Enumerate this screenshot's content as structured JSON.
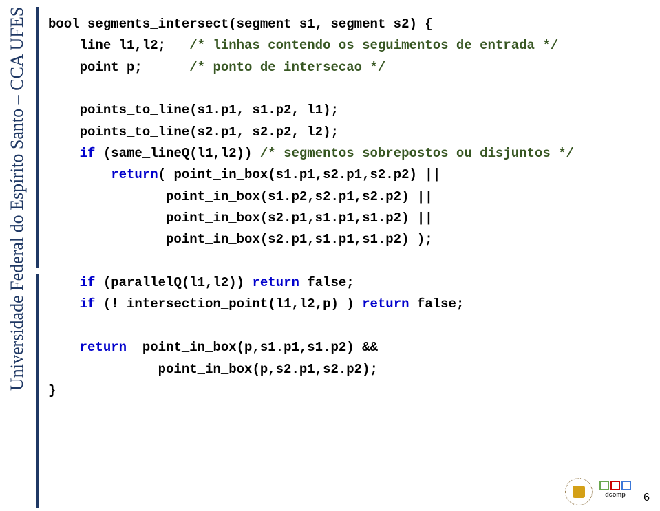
{
  "sidebar": {
    "text": "Universidade Federal do Espírito Santo – CCA UFES",
    "color": "#1f3864",
    "fontsize": 26
  },
  "code": {
    "lines": [
      {
        "indent": 0,
        "tokens": [
          {
            "t": "plain",
            "v": "bool segments_intersect(segment s1, segment s2) {"
          }
        ]
      },
      {
        "indent": 1,
        "tokens": [
          {
            "t": "plain",
            "v": "line l1,l2;   "
          },
          {
            "t": "comment",
            "v": "/* linhas contendo os seguimentos de entrada */"
          }
        ]
      },
      {
        "indent": 1,
        "tokens": [
          {
            "t": "plain",
            "v": "point p;      "
          },
          {
            "t": "comment",
            "v": "/* ponto de intersecao */"
          }
        ]
      },
      {
        "indent": 0,
        "tokens": [
          {
            "t": "plain",
            "v": ""
          }
        ]
      },
      {
        "indent": 1,
        "tokens": [
          {
            "t": "plain",
            "v": "points_to_line(s1.p1, s1.p2, l1);"
          }
        ]
      },
      {
        "indent": 1,
        "tokens": [
          {
            "t": "plain",
            "v": "points_to_line(s2.p1, s2.p2, l2);"
          }
        ]
      },
      {
        "indent": 1,
        "tokens": [
          {
            "t": "keyword",
            "v": "if"
          },
          {
            "t": "plain",
            "v": " (same_lineQ(l1,l2)) "
          },
          {
            "t": "comment",
            "v": "/* segmentos sobrepostos ou disjuntos */"
          }
        ]
      },
      {
        "indent": 2,
        "tokens": [
          {
            "t": "keyword",
            "v": "return"
          },
          {
            "t": "plain",
            "v": "( point_in_box(s1.p1,s2.p1,s2.p2) ||"
          }
        ]
      },
      {
        "indent": 3,
        "tokens": [
          {
            "t": "plain",
            "v": "   point_in_box(s1.p2,s2.p1,s2.p2) ||"
          }
        ]
      },
      {
        "indent": 3,
        "tokens": [
          {
            "t": "plain",
            "v": "   point_in_box(s2.p1,s1.p1,s1.p2) ||"
          }
        ]
      },
      {
        "indent": 3,
        "tokens": [
          {
            "t": "plain",
            "v": "   point_in_box(s2.p1,s1.p1,s1.p2) );"
          }
        ]
      },
      {
        "indent": 0,
        "tokens": [
          {
            "t": "plain",
            "v": ""
          }
        ]
      },
      {
        "indent": 1,
        "tokens": [
          {
            "t": "keyword",
            "v": "if"
          },
          {
            "t": "plain",
            "v": " (parallelQ(l1,l2)) "
          },
          {
            "t": "keyword",
            "v": "return"
          },
          {
            "t": "plain",
            "v": " false;"
          }
        ]
      },
      {
        "indent": 1,
        "tokens": [
          {
            "t": "keyword",
            "v": "if"
          },
          {
            "t": "plain",
            "v": " (! intersection_point(l1,l2,p) ) "
          },
          {
            "t": "keyword",
            "v": "return"
          },
          {
            "t": "plain",
            "v": " false;"
          }
        ]
      },
      {
        "indent": 0,
        "tokens": [
          {
            "t": "plain",
            "v": ""
          }
        ]
      },
      {
        "indent": 1,
        "tokens": [
          {
            "t": "keyword",
            "v": "return"
          },
          {
            "t": "plain",
            "v": "  point_in_box(p,s1.p1,s1.p2) &&"
          }
        ]
      },
      {
        "indent": 3,
        "tokens": [
          {
            "t": "plain",
            "v": "  point_in_box(p,s2.p1,s2.p2);"
          }
        ]
      },
      {
        "indent": 0,
        "tokens": [
          {
            "t": "plain",
            "v": "}"
          }
        ]
      }
    ],
    "fontsize": 19,
    "plain_color": "#000000",
    "comment_color": "#385723",
    "keyword_color": "#0000cc",
    "indent_spaces": 4
  },
  "page_number": "6",
  "logos": {
    "dcomp_label": "dcomp",
    "dcomp_colors": [
      "#6aa84f",
      "#cc0000",
      "#3c78d8"
    ]
  }
}
